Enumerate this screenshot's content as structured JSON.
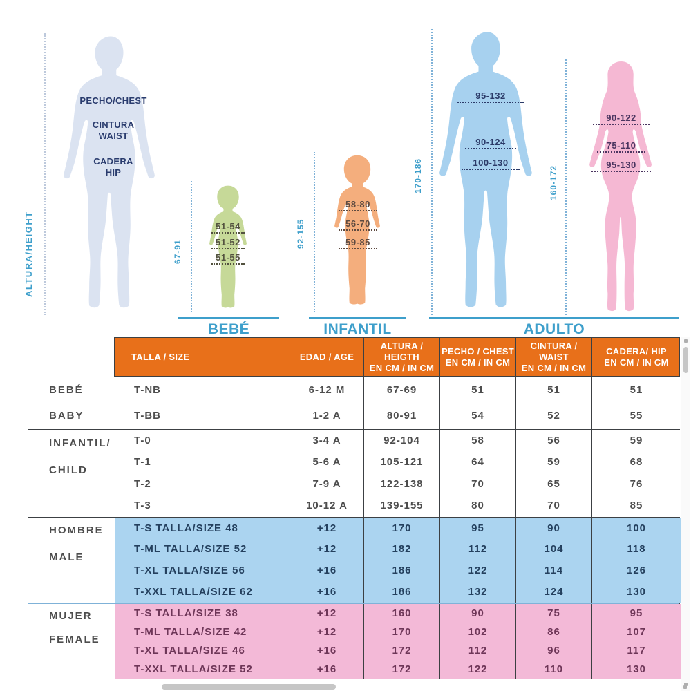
{
  "fig": {
    "axis_label": "ALTURA/HEIGHT",
    "chest_label": "PECHO/CHEST",
    "waist_label_1": "CINTURA",
    "waist_label_2": "WAIST",
    "hip_label_1": "CADERA",
    "hip_label_2": "HIP",
    "bebe": {
      "label": "BEBÉ",
      "range": "67-91",
      "chest": "51-54",
      "waist": "51-52",
      "hip": "51-55"
    },
    "infantil": {
      "label": "INFANTIL",
      "range": "92-155",
      "chest": "58-80",
      "waist": "56-70",
      "hip": "59-85"
    },
    "adulto": {
      "label": "ADULTO"
    },
    "hombre": {
      "range": "170-186",
      "chest": "95-132",
      "waist": "90-124",
      "hip": "100-130"
    },
    "mujer": {
      "range": "160-172",
      "chest": "90-122",
      "waist": "75-110",
      "hip": "95-130"
    }
  },
  "table": {
    "header": [
      {
        "l1": "TALLA / SIZE",
        "l2": ""
      },
      {
        "l1": "EDAD / AGE",
        "l2": ""
      },
      {
        "l1": "ALTURA / HEIGTH",
        "l2": "EN CM / IN CM"
      },
      {
        "l1": "PECHO / CHEST",
        "l2": "EN CM / IN CM"
      },
      {
        "l1": "CINTURA / WAIST",
        "l2": "EN CM / IN CM"
      },
      {
        "l1": "CADERA/ HIP",
        "l2": "EN CM / IN CM"
      }
    ],
    "groups": [
      {
        "id": "bebe",
        "label_lines": [
          "BEBÉ",
          "BABY"
        ],
        "bg": "#ffffff",
        "color": "#4d4d4d",
        "rows": [
          [
            "T-NB",
            "6-12 M",
            "67-69",
            "51",
            "51",
            "51"
          ],
          [
            "T-BB",
            "1-2 A",
            "80-91",
            "54",
            "52",
            "55"
          ]
        ]
      },
      {
        "id": "infantil",
        "label_lines": [
          "INFANTIL/",
          "CHILD"
        ],
        "bg": "#ffffff",
        "color": "#4d4d4d",
        "rows": [
          [
            "T-0",
            "3-4 A",
            "92-104",
            "58",
            "56",
            "59"
          ],
          [
            "T-1",
            "5-6 A",
            "105-121",
            "64",
            "59",
            "68"
          ],
          [
            "T-2",
            "7-9 A",
            "122-138",
            "70",
            "65",
            "76"
          ],
          [
            "T-3",
            "10-12 A",
            "139-155",
            "80",
            "70",
            "85"
          ]
        ]
      },
      {
        "id": "hombre",
        "label_lines": [
          "HOMBRE",
          "MALE"
        ],
        "bg": "#abd4f0",
        "color": "#24405e",
        "rows": [
          [
            "T-S TALLA/SIZE 48",
            "+12",
            "170",
            "95",
            "90",
            "100"
          ],
          [
            "T-ML TALLA/SIZE 52",
            "+12",
            "182",
            "112",
            "104",
            "118"
          ],
          [
            "T-XL TALLA/SIZE 56",
            "+16",
            "186",
            "122",
            "114",
            "126"
          ],
          [
            "T-XXL TALLA/SIZE 62",
            "+16",
            "186",
            "132",
            "124",
            "130"
          ]
        ]
      },
      {
        "id": "mujer",
        "label_lines": [
          "MUJER",
          "FEMALE"
        ],
        "bg": "#f3b9d7",
        "color": "#6e3658",
        "rows": [
          [
            "T-S TALLA/SIZE 38",
            "+12",
            "160",
            "90",
            "75",
            "95"
          ],
          [
            "T-ML TALLA/SIZE 42",
            "+12",
            "170",
            "102",
            "86",
            "107"
          ],
          [
            "T-XL TALLA/SIZE 46",
            "+16",
            "172",
            "112",
            "96",
            "117"
          ],
          [
            "T-XXL TALLA/SIZE 52",
            "+16",
            "172",
            "122",
            "110",
            "130"
          ]
        ]
      }
    ]
  },
  "colors": {
    "accent_blue": "#3e9fcb",
    "header_orange": "#e8701a",
    "figure_left": "#dbe3f1",
    "baby_green": "#c6d998",
    "child_orange": "#f4ae7d",
    "male_blue": "#a7d1ef",
    "female_pink": "#f5b8d3",
    "row_blue": "#abd4f0",
    "row_pink": "#f3b9d7",
    "table_border": "#3c4043"
  }
}
